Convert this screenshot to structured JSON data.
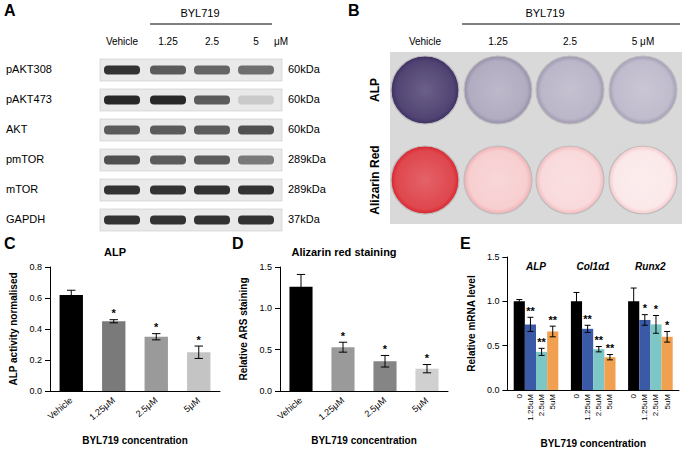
{
  "blot": {
    "panel": "A",
    "treatment": "BYL719",
    "lanes": [
      "Vehicle",
      "1.25",
      "2.5",
      "5"
    ],
    "unit": "μM",
    "rows": [
      {
        "label": "pAKT308",
        "size": "60kDa",
        "band_intensity": [
          0.9,
          0.7,
          0.65,
          0.6
        ]
      },
      {
        "label": "pAKT473",
        "size": "60kDa",
        "band_intensity": [
          0.95,
          0.95,
          0.7,
          0.15
        ]
      },
      {
        "label": "AKT",
        "size": "60kDa",
        "band_intensity": [
          0.7,
          0.7,
          0.7,
          0.75
        ]
      },
      {
        "label": "pmTOR",
        "size": "289kDa",
        "band_intensity": [
          0.75,
          0.7,
          0.7,
          0.55
        ]
      },
      {
        "label": "mTOR",
        "size": "289kDa",
        "band_intensity": [
          0.9,
          0.9,
          0.9,
          0.9
        ]
      },
      {
        "label": "GAPDH",
        "size": "37kDa",
        "band_intensity": [
          0.9,
          0.9,
          0.9,
          0.9
        ]
      }
    ]
  },
  "stain_plate": {
    "panel": "B",
    "treatment": "BYL719",
    "lanes": [
      "Vehicle",
      "1.25",
      "2.5",
      "5"
    ],
    "unit": "μM",
    "rows": [
      {
        "label": "ALP",
        "color": "#3e2f63",
        "stain_intensity": [
          0.9,
          0.4,
          0.35,
          0.32
        ]
      },
      {
        "label": "Alizarin Red",
        "color": "#d9262f",
        "stain_intensity": [
          0.85,
          0.22,
          0.17,
          0.1
        ]
      }
    ]
  },
  "chart_data": [
    {
      "panel": "C",
      "type": "bar",
      "title": "ALP",
      "x_label": "BYL719 concentration",
      "y_label": "ALP activity normalised",
      "categories": [
        "Vehicle",
        "1.25μM",
        "2.5μM",
        "5μM"
      ],
      "values": [
        0.62,
        0.45,
        0.35,
        0.25
      ],
      "errors": [
        0.03,
        0.01,
        0.02,
        0.04
      ],
      "significance": [
        null,
        "*",
        "*",
        "*"
      ],
      "colors": [
        "#000000",
        "#7a7a7a",
        "#9a9a9a",
        "#c4c4c4"
      ],
      "ylim": [
        0,
        0.8
      ],
      "yticks": [
        {
          "value": 0,
          "label": "0.0"
        },
        0.2,
        0.4,
        0.6,
        0.8
      ],
      "grid": false
    },
    {
      "panel": "D",
      "type": "bar",
      "title": "Alizarin red staining",
      "x_label": "BYL719 concentration",
      "y_label": "Relative ARS staining",
      "categories": [
        "Vehicle",
        "1.25μM",
        "2.5μM",
        "5μM"
      ],
      "values": [
        1.26,
        0.53,
        0.36,
        0.27
      ],
      "errors": [
        0.15,
        0.06,
        0.07,
        0.05
      ],
      "significance": [
        null,
        "*",
        "*",
        "*"
      ],
      "colors": [
        "#000000",
        "#9a9a9a",
        "#858585",
        "#d0d0d0"
      ],
      "ylim": [
        0,
        1.5
      ],
      "yticks": [
        {
          "value": 0,
          "label": "0.0"
        },
        0.5,
        {
          "value": 1,
          "label": "1.0"
        },
        1.5
      ],
      "grid": false
    },
    {
      "panel": "E",
      "type": "bar",
      "x_label": "BYL719 concentration",
      "y_label": "Relative mRNA level",
      "categories": [
        "ALP",
        "Col1α1",
        "Runx2"
      ],
      "series": [
        {
          "name": "0",
          "color": "#000000",
          "values": [
            1.0,
            1.0,
            1.0
          ],
          "errors": [
            0.02,
            0.1,
            0.15
          ]
        },
        {
          "name": "1.25uM",
          "color": "#3a5aa8",
          "values": [
            0.74,
            0.69,
            0.79
          ],
          "errors": [
            0.08,
            0.04,
            0.06
          ],
          "significance": [
            "**",
            "**",
            "*"
          ]
        },
        {
          "name": "2.5uM",
          "color": "#7cc6c6",
          "values": [
            0.43,
            0.46,
            0.74
          ],
          "errors": [
            0.04,
            0.03,
            0.1
          ],
          "significance": [
            "**",
            "**",
            "*"
          ]
        },
        {
          "name": "5uM",
          "color": "#f0a04e",
          "values": [
            0.66,
            0.37,
            0.6
          ],
          "errors": [
            0.06,
            0.03,
            0.06
          ],
          "significance": [
            "**",
            "**",
            "*"
          ]
        }
      ],
      "ylim": [
        0,
        1.5
      ],
      "yticks": [
        {
          "value": 0,
          "label": "0.0"
        },
        0.5,
        {
          "value": 1,
          "label": "1.0"
        },
        1.5
      ],
      "grid": false
    }
  ]
}
